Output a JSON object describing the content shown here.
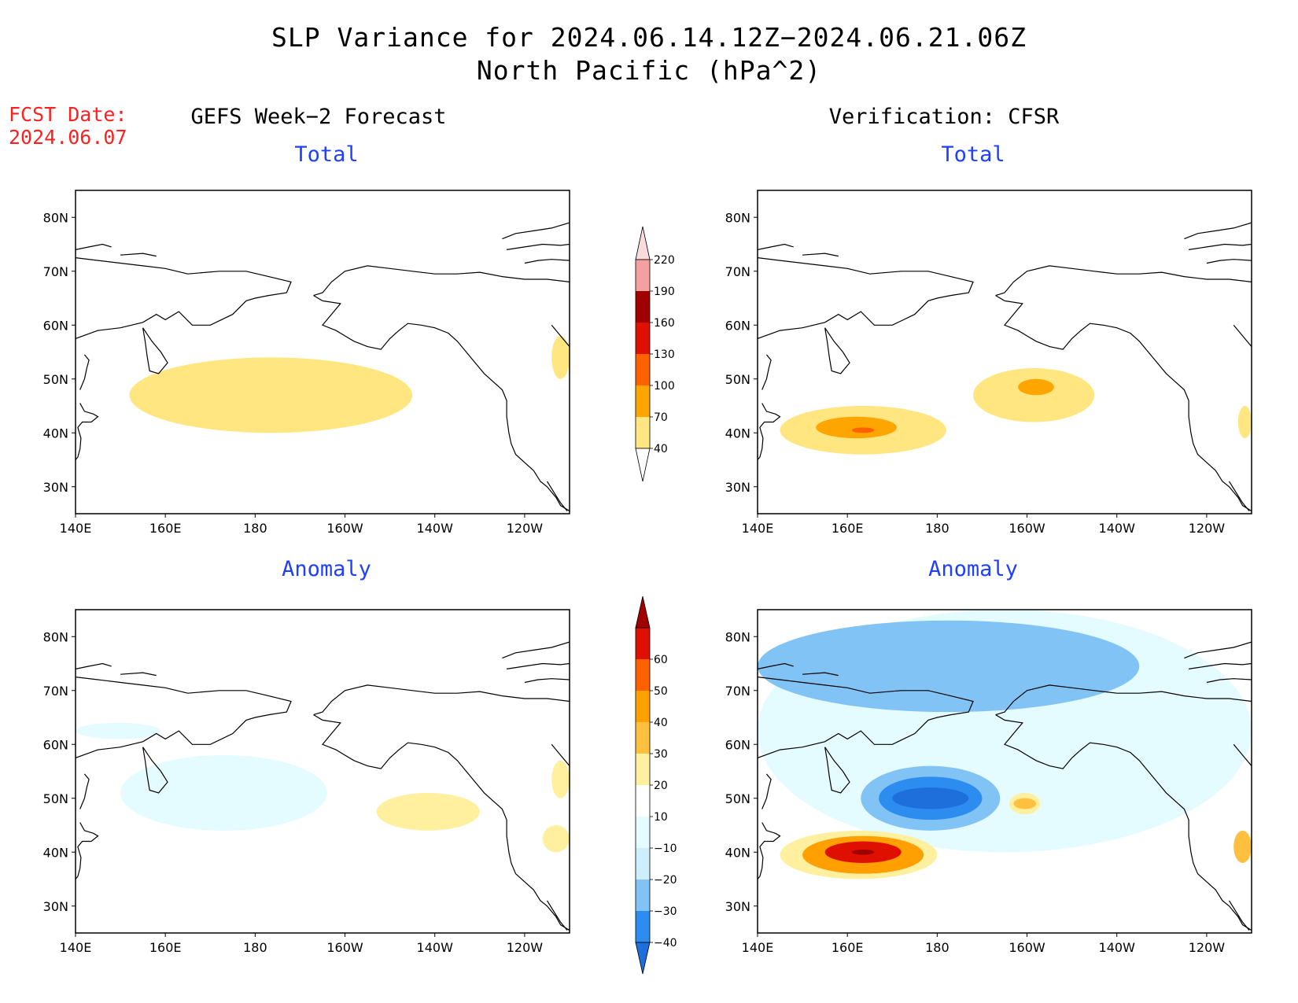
{
  "header": {
    "title_line1": "SLP Variance for 2024.06.14.12Z−2024.06.21.06Z",
    "title_line2": "North Pacific (hPa^2)",
    "fcst_label": "FCST Date:",
    "fcst_date": "2024.06.07"
  },
  "columns": {
    "left": "GEFS Week−2 Forecast",
    "right": "Verification: CFSR"
  },
  "panels": {
    "total": "Total",
    "anomaly": "Anomaly"
  },
  "axes": {
    "lat_labels": [
      "80N",
      "70N",
      "60N",
      "50N",
      "40N",
      "30N"
    ],
    "lat_values": [
      80,
      70,
      60,
      50,
      40,
      30
    ],
    "lon_labels": [
      "140E",
      "160E",
      "180",
      "160W",
      "140W",
      "120W"
    ],
    "lon_values": [
      140,
      160,
      180,
      200,
      220,
      240
    ],
    "lon_range": [
      140,
      250
    ],
    "lat_range": [
      25,
      85
    ]
  },
  "colorbars": {
    "total": {
      "levels": [
        "40",
        "70",
        "100",
        "130",
        "160",
        "190",
        "220"
      ],
      "colors": [
        "#ffe680",
        "#ffa500",
        "#ff6000",
        "#e01000",
        "#a00000",
        "#f2a0a0",
        "#fadcdc"
      ]
    },
    "anomaly": {
      "levels": [
        "−40",
        "−30",
        "−20",
        "−10",
        "10",
        "20",
        "30",
        "40",
        "50",
        "60"
      ],
      "colors": [
        "#1e6edc",
        "#2c8cf0",
        "#82c3f5",
        "#cdeefd",
        "#e4fbff",
        "#ffffff",
        "#fff0a0",
        "#ffc040",
        "#ffa000",
        "#ff6000",
        "#e01000",
        "#a00000"
      ]
    }
  },
  "chart_data": [
    {
      "type": "heatmap",
      "panel": "GEFS Week-2 Forecast / Total",
      "features": [
        {
          "level": "40-70",
          "color": "#ffe680",
          "lon_range": [
            152,
            215
          ],
          "lat_range": [
            40,
            54
          ],
          "description_value": "broad band"
        },
        {
          "level": "40-70",
          "color": "#ffe680",
          "lon_range": [
            246,
            250
          ],
          "lat_range": [
            50,
            58
          ]
        }
      ]
    },
    {
      "type": "heatmap",
      "panel": "Verification: CFSR / Total",
      "features": [
        {
          "level": "40-70",
          "color": "#ffe680",
          "lon_range": [
            145,
            182
          ],
          "lat_range": [
            36,
            45
          ]
        },
        {
          "level": "70-100",
          "color": "#ffa500",
          "lon_range": [
            153,
            171
          ],
          "lat_range": [
            39,
            43
          ]
        },
        {
          "level": "100-130",
          "color": "#ff6000",
          "lon_range": [
            161,
            166
          ],
          "lat_range": [
            40,
            41
          ]
        },
        {
          "level": "40-70",
          "color": "#ffe680",
          "lon_range": [
            188,
            215
          ],
          "lat_range": [
            42,
            52
          ]
        },
        {
          "level": "70-100",
          "color": "#ffa500",
          "lon_range": [
            198,
            206
          ],
          "lat_range": [
            47,
            50
          ]
        },
        {
          "level": "40-70",
          "color": "#ffe680",
          "lon_range": [
            247,
            250
          ],
          "lat_range": [
            39,
            45
          ]
        }
      ]
    },
    {
      "type": "heatmap",
      "panel": "GEFS Week-2 Forecast / Anomaly",
      "features": [
        {
          "level": "-20 to -10",
          "color": "#e4fbff",
          "lon_range": [
            150,
            196
          ],
          "lat_range": [
            44,
            58
          ]
        },
        {
          "level": "-20 to -10",
          "color": "#e4fbff",
          "lon_range": [
            140,
            159
          ],
          "lat_range": [
            61,
            64
          ]
        },
        {
          "level": "10-20",
          "color": "#fff0a0",
          "lon_range": [
            207,
            230
          ],
          "lat_range": [
            44,
            51
          ]
        },
        {
          "level": "10-20",
          "color": "#fff0a0",
          "lon_range": [
            244,
            250
          ],
          "lat_range": [
            40,
            45
          ]
        },
        {
          "level": "10-20",
          "color": "#fff0a0",
          "lon_range": [
            246,
            250
          ],
          "lat_range": [
            50,
            57
          ]
        }
      ]
    },
    {
      "type": "heatmap",
      "panel": "Verification: CFSR / Anomaly",
      "features": [
        {
          "level": "-20 to -10",
          "color": "#e4fbff",
          "lon_range": [
            140,
            250
          ],
          "lat_range": [
            40,
            85
          ]
        },
        {
          "level": "-30 to -20",
          "color": "#82c3f5",
          "lon_range": [
            140,
            225
          ],
          "lat_range": [
            66,
            83
          ]
        },
        {
          "level": "-30 to -20",
          "color": "#82c3f5",
          "lon_range": [
            163,
            194
          ],
          "lat_range": [
            44,
            56
          ]
        },
        {
          "level": "-40 to -30",
          "color": "#2c8cf0",
          "lon_range": [
            167,
            190
          ],
          "lat_range": [
            46,
            54
          ]
        },
        {
          "level": "below -40",
          "color": "#1e6edc",
          "lon_range": [
            170,
            187
          ],
          "lat_range": [
            48,
            52
          ]
        },
        {
          "level": "10-20",
          "color": "#fff0a0",
          "lon_range": [
            145,
            180
          ],
          "lat_range": [
            35,
            44
          ]
        },
        {
          "level": "20-40",
          "color": "#ffa000",
          "lon_range": [
            150,
            177
          ],
          "lat_range": [
            36,
            43
          ]
        },
        {
          "level": "40-60",
          "color": "#e01000",
          "lon_range": [
            155,
            172
          ],
          "lat_range": [
            38,
            42
          ]
        },
        {
          "level": "above 60",
          "color": "#a00000",
          "lon_range": [
            161,
            166
          ],
          "lat_range": [
            39.5,
            40.5
          ]
        },
        {
          "level": "10-20",
          "color": "#fff0a0",
          "lon_range": [
            196,
            203
          ],
          "lat_range": [
            47,
            51
          ]
        },
        {
          "level": "20-30",
          "color": "#ffc040",
          "lon_range": [
            197,
            202
          ],
          "lat_range": [
            48,
            50
          ]
        },
        {
          "level": "10-30",
          "color": "#ffc040",
          "lon_range": [
            246,
            250
          ],
          "lat_range": [
            38,
            44
          ]
        }
      ]
    }
  ]
}
